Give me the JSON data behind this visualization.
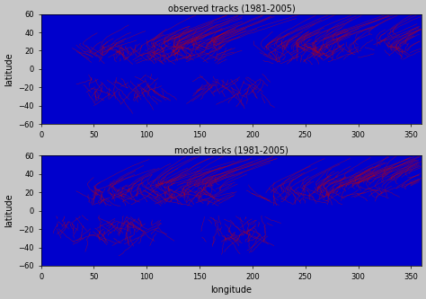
{
  "title_top": "observed tracks (1981-2005)",
  "title_bottom": "model tracks (1981-2005)",
  "xlabel": "longitude",
  "ylabel": "latitude",
  "xlim": [
    0,
    360
  ],
  "ylim": [
    -60,
    60
  ],
  "xticks": [
    0,
    50,
    100,
    150,
    200,
    250,
    300,
    350
  ],
  "yticks": [
    -60,
    -40,
    -20,
    0,
    20,
    40,
    60
  ],
  "ocean_color": "#0000CC",
  "land_color": "#00BB44",
  "track_color_obs": "#CC0000",
  "track_color_mod": "#CC0000",
  "bg_color": "#C8C8C8",
  "fig_bg": "#C8C8C8",
  "title_fontsize": 7,
  "label_fontsize": 7,
  "tick_fontsize": 6
}
